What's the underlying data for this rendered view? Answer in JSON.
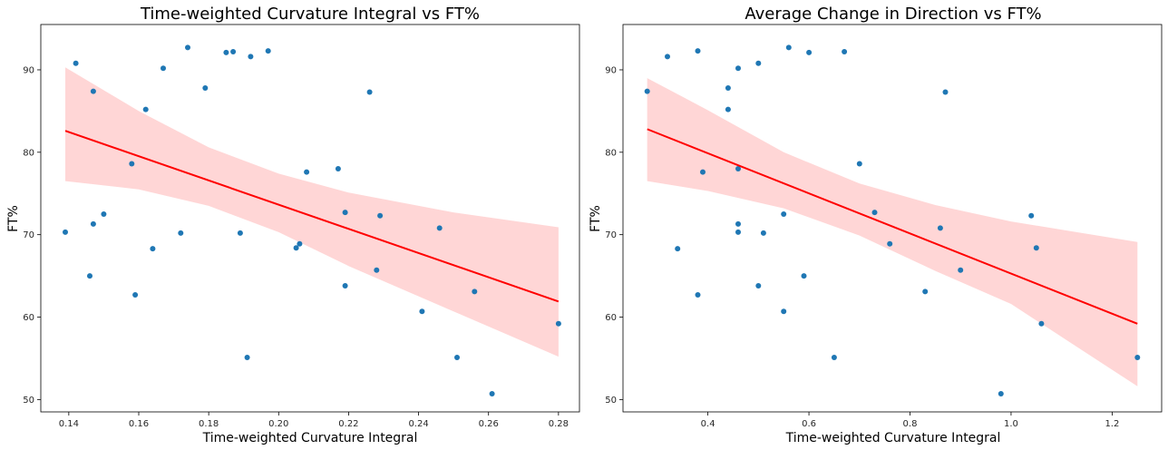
{
  "chart_data": [
    {
      "type": "scatter",
      "title": "Time-weighted Curvature Integral vs FT%",
      "xlabel": "Time-weighted Curvature Integral",
      "ylabel": "FT%",
      "xlim": [
        0.132,
        0.286
      ],
      "ylim": [
        48.5,
        95.5
      ],
      "xticks": [
        0.14,
        0.16,
        0.18,
        0.2,
        0.22,
        0.24,
        0.26,
        0.28
      ],
      "xtick_labels": [
        "0.14",
        "0.16",
        "0.18",
        "0.20",
        "0.22",
        "0.24",
        "0.26",
        "0.28"
      ],
      "yticks": [
        50,
        60,
        70,
        80,
        90
      ],
      "ytick_labels": [
        "50",
        "60",
        "70",
        "80",
        "90"
      ],
      "grid": false,
      "point_color": "#1f77b4",
      "fit_color": "#ff0000",
      "ci_color": "#ffd6d6",
      "points": [
        {
          "x": 0.139,
          "y": 70.3
        },
        {
          "x": 0.142,
          "y": 90.8
        },
        {
          "x": 0.146,
          "y": 65.0
        },
        {
          "x": 0.147,
          "y": 87.4
        },
        {
          "x": 0.147,
          "y": 71.3
        },
        {
          "x": 0.15,
          "y": 72.5
        },
        {
          "x": 0.158,
          "y": 78.6
        },
        {
          "x": 0.159,
          "y": 62.7
        },
        {
          "x": 0.162,
          "y": 85.2
        },
        {
          "x": 0.164,
          "y": 68.3
        },
        {
          "x": 0.167,
          "y": 90.2
        },
        {
          "x": 0.172,
          "y": 70.2
        },
        {
          "x": 0.174,
          "y": 92.7
        },
        {
          "x": 0.179,
          "y": 87.8
        },
        {
          "x": 0.185,
          "y": 92.1
        },
        {
          "x": 0.187,
          "y": 92.2
        },
        {
          "x": 0.189,
          "y": 70.2
        },
        {
          "x": 0.191,
          "y": 55.1
        },
        {
          "x": 0.192,
          "y": 91.6
        },
        {
          "x": 0.197,
          "y": 92.3
        },
        {
          "x": 0.205,
          "y": 68.4
        },
        {
          "x": 0.206,
          "y": 68.9
        },
        {
          "x": 0.208,
          "y": 77.6
        },
        {
          "x": 0.217,
          "y": 78.0
        },
        {
          "x": 0.219,
          "y": 72.7
        },
        {
          "x": 0.219,
          "y": 63.8
        },
        {
          "x": 0.226,
          "y": 87.3
        },
        {
          "x": 0.228,
          "y": 65.7
        },
        {
          "x": 0.229,
          "y": 72.3
        },
        {
          "x": 0.241,
          "y": 60.7
        },
        {
          "x": 0.246,
          "y": 70.8
        },
        {
          "x": 0.251,
          "y": 55.1
        },
        {
          "x": 0.256,
          "y": 63.1
        },
        {
          "x": 0.261,
          "y": 50.7
        },
        {
          "x": 0.28,
          "y": 59.2
        }
      ],
      "fit_line": [
        {
          "x": 0.139,
          "y": 82.6
        },
        {
          "x": 0.28,
          "y": 61.9
        }
      ],
      "ci_upper": [
        {
          "x": 0.139,
          "y": 90.3
        },
        {
          "x": 0.16,
          "y": 85.0
        },
        {
          "x": 0.18,
          "y": 80.6
        },
        {
          "x": 0.2,
          "y": 77.4
        },
        {
          "x": 0.22,
          "y": 75.1
        },
        {
          "x": 0.25,
          "y": 72.7
        },
        {
          "x": 0.28,
          "y": 70.9
        }
      ],
      "ci_lower": [
        {
          "x": 0.139,
          "y": 76.5
        },
        {
          "x": 0.16,
          "y": 75.5
        },
        {
          "x": 0.18,
          "y": 73.5
        },
        {
          "x": 0.2,
          "y": 70.3
        },
        {
          "x": 0.22,
          "y": 66.2
        },
        {
          "x": 0.25,
          "y": 60.7
        },
        {
          "x": 0.28,
          "y": 55.2
        }
      ]
    },
    {
      "type": "scatter",
      "title": "Average Change in Direction vs FT%",
      "xlabel": "Time-weighted Curvature Integral",
      "ylabel": "FT%",
      "xlim": [
        0.232,
        1.298
      ],
      "ylim": [
        48.5,
        95.5
      ],
      "xticks": [
        0.4,
        0.6,
        0.8,
        1.0,
        1.2
      ],
      "xtick_labels": [
        "0.4",
        "0.6",
        "0.8",
        "1.0",
        "1.2"
      ],
      "yticks": [
        50,
        60,
        70,
        80,
        90
      ],
      "ytick_labels": [
        "50",
        "60",
        "70",
        "80",
        "90"
      ],
      "grid": false,
      "point_color": "#1f77b4",
      "fit_color": "#ff0000",
      "ci_color": "#ffd6d6",
      "points": [
        {
          "x": 0.28,
          "y": 87.4
        },
        {
          "x": 0.32,
          "y": 91.6
        },
        {
          "x": 0.34,
          "y": 68.3
        },
        {
          "x": 0.38,
          "y": 92.3
        },
        {
          "x": 0.38,
          "y": 62.7
        },
        {
          "x": 0.39,
          "y": 77.6
        },
        {
          "x": 0.44,
          "y": 87.8
        },
        {
          "x": 0.44,
          "y": 85.2
        },
        {
          "x": 0.46,
          "y": 90.2
        },
        {
          "x": 0.46,
          "y": 78.0
        },
        {
          "x": 0.46,
          "y": 71.3
        },
        {
          "x": 0.46,
          "y": 70.3
        },
        {
          "x": 0.5,
          "y": 90.8
        },
        {
          "x": 0.5,
          "y": 63.8
        },
        {
          "x": 0.51,
          "y": 70.2
        },
        {
          "x": 0.55,
          "y": 72.5
        },
        {
          "x": 0.55,
          "y": 60.7
        },
        {
          "x": 0.56,
          "y": 92.7
        },
        {
          "x": 0.59,
          "y": 65.0
        },
        {
          "x": 0.6,
          "y": 92.1
        },
        {
          "x": 0.65,
          "y": 55.1
        },
        {
          "x": 0.67,
          "y": 92.2
        },
        {
          "x": 0.7,
          "y": 78.6
        },
        {
          "x": 0.73,
          "y": 72.7
        },
        {
          "x": 0.76,
          "y": 68.9
        },
        {
          "x": 0.83,
          "y": 63.1
        },
        {
          "x": 0.86,
          "y": 70.8
        },
        {
          "x": 0.87,
          "y": 87.3
        },
        {
          "x": 0.9,
          "y": 65.7
        },
        {
          "x": 0.98,
          "y": 50.7
        },
        {
          "x": 1.04,
          "y": 72.3
        },
        {
          "x": 1.05,
          "y": 68.4
        },
        {
          "x": 1.06,
          "y": 59.2
        },
        {
          "x": 1.25,
          "y": 55.1
        }
      ],
      "fit_line": [
        {
          "x": 0.28,
          "y": 82.8
        },
        {
          "x": 1.25,
          "y": 59.2
        }
      ],
      "ci_upper": [
        {
          "x": 0.28,
          "y": 89.0
        },
        {
          "x": 0.4,
          "y": 85.1
        },
        {
          "x": 0.55,
          "y": 80.0
        },
        {
          "x": 0.7,
          "y": 76.2
        },
        {
          "x": 0.85,
          "y": 73.6
        },
        {
          "x": 1.0,
          "y": 71.6
        },
        {
          "x": 1.25,
          "y": 69.1
        }
      ],
      "ci_lower": [
        {
          "x": 0.28,
          "y": 76.5
        },
        {
          "x": 0.4,
          "y": 75.3
        },
        {
          "x": 0.55,
          "y": 73.2
        },
        {
          "x": 0.7,
          "y": 69.9
        },
        {
          "x": 0.85,
          "y": 65.6
        },
        {
          "x": 1.0,
          "y": 61.6
        },
        {
          "x": 1.25,
          "y": 51.6
        }
      ]
    }
  ]
}
